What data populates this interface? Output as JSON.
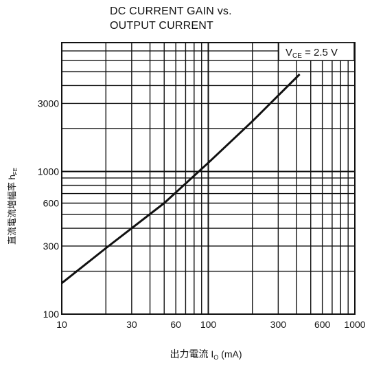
{
  "chart_data": {
    "type": "line",
    "title_line1": "DC CURRENT GAIN vs.",
    "title_line2": "OUTPUT CURRENT",
    "xlabel_prefix": "出力電流 I",
    "xlabel_sub": "O",
    "xlabel_suffix": " (mA)",
    "ylabel_main": "直流電流増幅率 h",
    "ylabel_sub": "FE",
    "annotation": {
      "prefix": "V",
      "sub": "CE",
      "suffix": " = 2.5 V"
    },
    "x_scale": "log",
    "y_scale": "log",
    "xlim": [
      10,
      1000
    ],
    "ylim": [
      100,
      8000
    ],
    "x_ticks": [
      10,
      30,
      60,
      100,
      300,
      600,
      1000
    ],
    "x_tick_labels": [
      "10",
      "30",
      "60",
      "100",
      "300",
      "600",
      "1000"
    ],
    "y_ticks": [
      100,
      300,
      600,
      1000,
      3000
    ],
    "y_tick_labels": [
      "100",
      "300",
      "600",
      "1000",
      "3000"
    ],
    "grid": true,
    "series": [
      {
        "x": [
          10,
          20,
          50,
          100,
          200,
          420
        ],
        "y": [
          165,
          290,
          600,
          1150,
          2250,
          4800
        ]
      }
    ]
  }
}
